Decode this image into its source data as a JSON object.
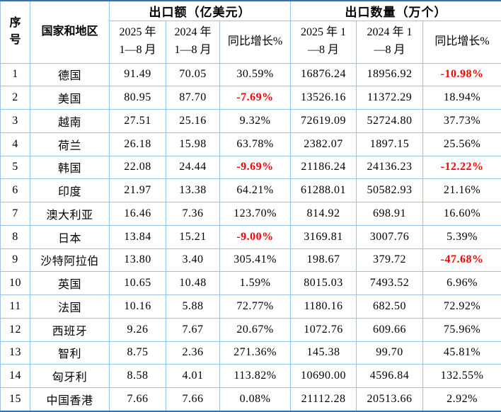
{
  "colors": {
    "outer_border": "#2E75B6",
    "grid_border": "#9DC3E6",
    "text": "#000000",
    "negative_value": "#FF0000",
    "background": "#FFFFFF"
  },
  "chart_data": {
    "type": "table",
    "header": {
      "seq": "序\n号",
      "country": "国家和地区",
      "group_amount": "出口额（亿美元）",
      "group_quantity": "出口数量（万个）",
      "amount_2025": "2025 年\n1—8 月",
      "amount_2024": "2024 年\n1—8 月",
      "amount_yoy": "同比增长%",
      "qty_2025": "2025 年 1\n—8 月",
      "qty_2024": "2024 年 1\n—8 月",
      "qty_yoy": "同比增长%"
    },
    "column_keys": [
      "seq",
      "country",
      "amount-2025",
      "amount-2024",
      "amount-yoy",
      "qty-2025",
      "qty-2024",
      "qty-yoy"
    ],
    "rows": [
      {
        "cells": [
          "1",
          "德国",
          "91.49",
          "70.05",
          "30.59%",
          "16876.24",
          "18956.92",
          "-10.98%"
        ],
        "negative_cols": [
          7
        ]
      },
      {
        "cells": [
          "2",
          "美国",
          "80.95",
          "87.70",
          "-7.69%",
          "13526.16",
          "11372.29",
          "18.94%"
        ],
        "negative_cols": [
          4
        ]
      },
      {
        "cells": [
          "3",
          "越南",
          "27.51",
          "25.16",
          "9.32%",
          "72619.09",
          "52724.80",
          "37.73%"
        ],
        "negative_cols": []
      },
      {
        "cells": [
          "4",
          "荷兰",
          "26.18",
          "15.98",
          "63.78%",
          "2382.07",
          "1897.15",
          "25.56%"
        ],
        "negative_cols": []
      },
      {
        "cells": [
          "5",
          "韩国",
          "22.08",
          "24.44",
          "-9.69%",
          "21186.24",
          "24136.23",
          "-12.22%"
        ],
        "negative_cols": [
          4,
          7
        ]
      },
      {
        "cells": [
          "6",
          "印度",
          "21.97",
          "13.38",
          "64.21%",
          "61288.01",
          "50582.93",
          "21.16%"
        ],
        "negative_cols": []
      },
      {
        "cells": [
          "7",
          "澳大利亚",
          "16.46",
          "7.36",
          "123.70%",
          "814.92",
          "698.91",
          "16.60%"
        ],
        "negative_cols": []
      },
      {
        "cells": [
          "8",
          "日本",
          "13.84",
          "15.21",
          "-9.00%",
          "3169.81",
          "3007.76",
          "5.39%"
        ],
        "negative_cols": [
          4
        ]
      },
      {
        "cells": [
          "9",
          "沙特阿拉伯",
          "13.80",
          "3.40",
          "305.41%",
          "198.67",
          "379.72",
          "-47.68%"
        ],
        "negative_cols": [
          7
        ]
      },
      {
        "cells": [
          "10",
          "英国",
          "10.65",
          "10.48",
          "1.59%",
          "8015.03",
          "7493.52",
          "6.96%"
        ],
        "negative_cols": []
      },
      {
        "cells": [
          "11",
          "法国",
          "10.16",
          "5.88",
          "72.77%",
          "1180.16",
          "682.50",
          "72.92%"
        ],
        "negative_cols": []
      },
      {
        "cells": [
          "12",
          "西班牙",
          "9.26",
          "7.67",
          "20.67%",
          "1072.76",
          "609.66",
          "75.96%"
        ],
        "negative_cols": []
      },
      {
        "cells": [
          "13",
          "智利",
          "8.75",
          "2.36",
          "271.36%",
          "145.38",
          "99.70",
          "45.81%"
        ],
        "negative_cols": []
      },
      {
        "cells": [
          "14",
          "匈牙利",
          "8.58",
          "4.01",
          "113.82%",
          "10690.00",
          "4596.84",
          "132.55%"
        ],
        "negative_cols": []
      },
      {
        "cells": [
          "15",
          "中国香港",
          "7.66",
          "7.66",
          "0.08%",
          "21112.28",
          "20513.66",
          "2.92%"
        ],
        "negative_cols": []
      }
    ]
  }
}
